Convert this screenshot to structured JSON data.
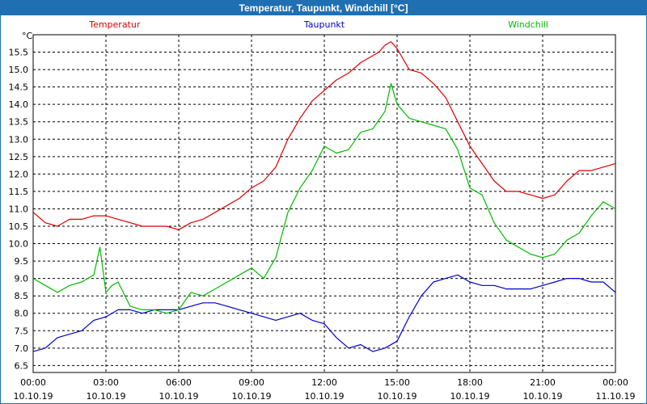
{
  "window": {
    "title": "Temperatur, Taupunkt, Windchill [°C]"
  },
  "colors": {
    "titlebar": "#1f6fb2",
    "temperatur": "#dd0000",
    "taupunkt": "#0000cc",
    "windchill": "#00bb00",
    "grid": "#000000"
  },
  "chart_data": {
    "type": "line",
    "title": "Temperatur, Taupunkt, Windchill [°C]",
    "ylabel": "°C",
    "ylim": [
      6.3,
      16.0
    ],
    "yticks": [
      6.5,
      7.0,
      7.5,
      8.0,
      8.5,
      9.0,
      9.5,
      10.0,
      10.5,
      11.0,
      11.5,
      12.0,
      12.5,
      13.0,
      13.5,
      14.0,
      14.5,
      15.0,
      15.5
    ],
    "ytick_labels": [
      "6.5",
      "7.0",
      "7.5",
      "8.0",
      "8.5",
      "9.0",
      "9.5",
      "10.0",
      "10.5",
      "11.0",
      "11.5",
      "12.0",
      "12.5",
      "13.0",
      "13.5",
      "14.0",
      "14.5",
      "15.0",
      "15.5"
    ],
    "xlim_hours": [
      0,
      24
    ],
    "xticks_hours": [
      0,
      3,
      6,
      9,
      12,
      15,
      18,
      21,
      24
    ],
    "xtick_times": [
      "00:00",
      "03:00",
      "06:00",
      "09:00",
      "12:00",
      "15:00",
      "18:00",
      "21:00",
      "00:00"
    ],
    "xtick_dates": [
      "10.10.19",
      "10.10.19",
      "10.10.19",
      "10.10.19",
      "10.10.19",
      "10.10.19",
      "10.10.19",
      "10.10.19",
      "11.10.19"
    ],
    "grid": true,
    "legend": "top",
    "series": [
      {
        "name": "Temperatur",
        "color": "#dd0000",
        "x": [
          0,
          0.5,
          1,
          1.5,
          2,
          2.5,
          3,
          3.5,
          4,
          4.5,
          5,
          5.5,
          6,
          6.5,
          7,
          7.5,
          8,
          8.5,
          9,
          9.5,
          10,
          10.5,
          11,
          11.5,
          12,
          12.5,
          13,
          13.5,
          14,
          14.25,
          14.5,
          14.75,
          15,
          15.5,
          16,
          16.5,
          17,
          17.5,
          18,
          18.5,
          19,
          19.5,
          20,
          20.5,
          21,
          21.5,
          22,
          22.5,
          23,
          23.5,
          24
        ],
        "values": [
          10.9,
          10.6,
          10.5,
          10.7,
          10.7,
          10.8,
          10.8,
          10.7,
          10.6,
          10.5,
          10.5,
          10.5,
          10.4,
          10.6,
          10.7,
          10.9,
          11.1,
          11.3,
          11.6,
          11.8,
          12.2,
          13.0,
          13.6,
          14.1,
          14.4,
          14.7,
          14.9,
          15.2,
          15.4,
          15.5,
          15.7,
          15.8,
          15.6,
          15.0,
          14.9,
          14.6,
          14.2,
          13.5,
          12.8,
          12.3,
          11.8,
          11.5,
          11.5,
          11.4,
          11.3,
          11.4,
          11.8,
          12.1,
          12.1,
          12.2,
          12.3
        ]
      },
      {
        "name": "Taupunkt",
        "color": "#0000cc",
        "x": [
          0,
          0.5,
          1,
          1.5,
          2,
          2.5,
          3,
          3.5,
          4,
          4.5,
          5,
          5.5,
          6,
          6.5,
          7,
          7.5,
          8,
          8.5,
          9,
          9.5,
          10,
          10.5,
          11,
          11.5,
          12,
          12.5,
          13,
          13.5,
          14,
          14.5,
          15,
          15.5,
          16,
          16.5,
          17,
          17.5,
          18,
          18.5,
          19,
          19.5,
          20,
          20.5,
          21,
          21.5,
          22,
          22.5,
          23,
          23.5,
          24
        ],
        "values": [
          6.9,
          7.0,
          7.3,
          7.4,
          7.5,
          7.8,
          7.9,
          8.1,
          8.1,
          8.0,
          8.1,
          8.1,
          8.1,
          8.2,
          8.3,
          8.3,
          8.2,
          8.1,
          8.0,
          7.9,
          7.8,
          7.9,
          8.0,
          7.8,
          7.7,
          7.3,
          7.0,
          7.1,
          6.9,
          7.0,
          7.2,
          7.9,
          8.5,
          8.9,
          9.0,
          9.1,
          8.9,
          8.8,
          8.8,
          8.7,
          8.7,
          8.7,
          8.8,
          8.9,
          9.0,
          9.0,
          8.9,
          8.9,
          8.6
        ]
      },
      {
        "name": "Windchill",
        "color": "#00bb00",
        "x": [
          0,
          0.5,
          1,
          1.5,
          2,
          2.5,
          2.75,
          3,
          3.25,
          3.5,
          4,
          4.5,
          5,
          5.5,
          6,
          6.5,
          7,
          7.5,
          8,
          8.5,
          9,
          9.5,
          10,
          10.5,
          11,
          11.5,
          12,
          12.5,
          13,
          13.5,
          14,
          14.5,
          14.75,
          15,
          15.5,
          16,
          16.5,
          17,
          17.5,
          18,
          18.5,
          19,
          19.5,
          20,
          20.5,
          21,
          21.5,
          22,
          22.5,
          23,
          23.5,
          24
        ],
        "values": [
          9.0,
          8.8,
          8.6,
          8.8,
          8.9,
          9.1,
          9.9,
          8.6,
          8.8,
          8.9,
          8.2,
          8.1,
          8.1,
          8.0,
          8.1,
          8.6,
          8.5,
          8.7,
          8.9,
          9.1,
          9.3,
          9.0,
          9.6,
          10.9,
          11.6,
          12.1,
          12.8,
          12.6,
          12.7,
          13.2,
          13.3,
          13.8,
          14.6,
          14.0,
          13.6,
          13.5,
          13.4,
          13.3,
          12.7,
          11.6,
          11.4,
          10.6,
          10.1,
          9.9,
          9.7,
          9.6,
          9.7,
          10.1,
          10.3,
          10.8,
          11.2,
          11.0
        ]
      }
    ]
  }
}
